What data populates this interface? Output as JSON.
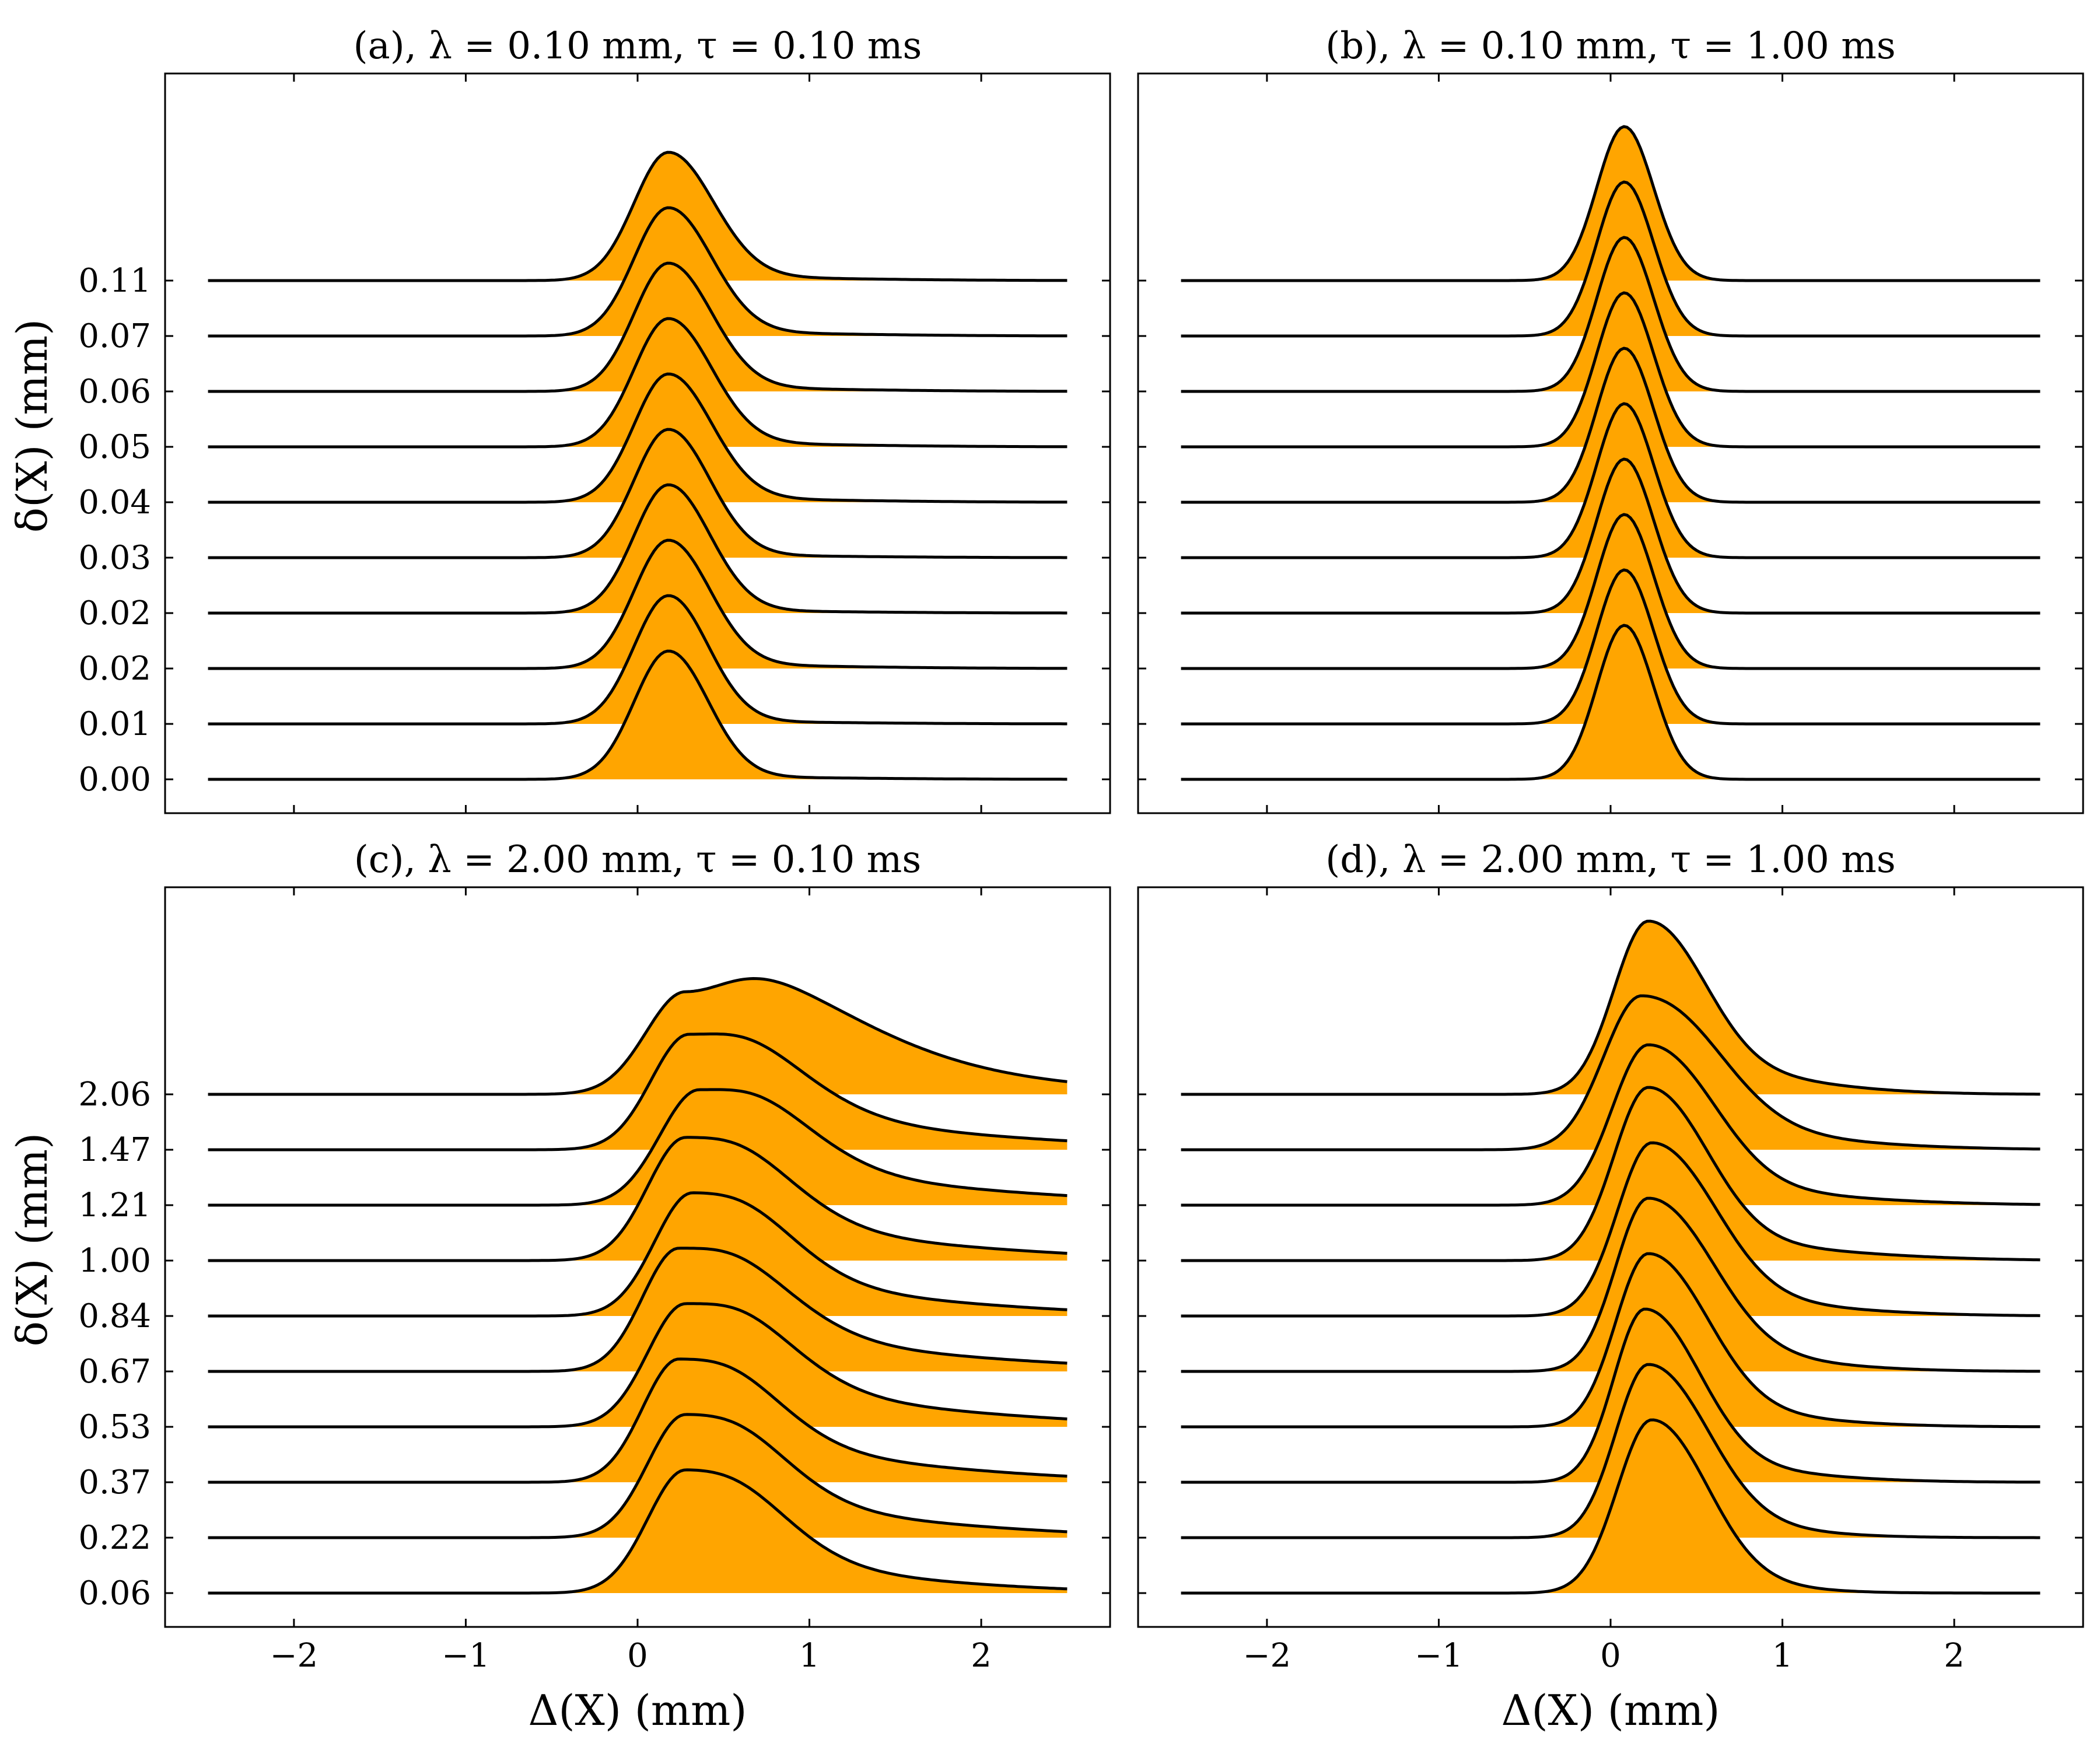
{
  "chart_data": [
    {
      "type": "ridgeline",
      "panel": "a",
      "title": "(a), λ = 0.10 mm, τ = 0.10 ms",
      "xlabel": "",
      "ylabel": "δ(X) (mm)",
      "xlim": [
        -2.75,
        2.75
      ],
      "x_ticks": [
        -2,
        -1,
        0,
        1,
        2
      ],
      "x_tick_labels": [],
      "y_tick_labels": [
        "0.00",
        "0.01",
        "0.02",
        "0.02",
        "0.03",
        "0.04",
        "0.05",
        "0.06",
        "0.07",
        "0.11"
      ],
      "fill_color": "#FFA500",
      "line_color": "#000000",
      "grid": false,
      "series": [
        {
          "label": "0.00",
          "peak_x": 0.18,
          "sigma_left": 0.2,
          "sigma_right": 0.23,
          "height": 1.0,
          "tail_amp": 0.02,
          "tail_decay": 0.5
        },
        {
          "label": "0.01",
          "peak_x": 0.18,
          "sigma_left": 0.2,
          "sigma_right": 0.23,
          "height": 1.0,
          "tail_amp": 0.02,
          "tail_decay": 0.5
        },
        {
          "label": "0.02",
          "peak_x": 0.18,
          "sigma_left": 0.2,
          "sigma_right": 0.24,
          "height": 1.0,
          "tail_amp": 0.03,
          "tail_decay": 0.5
        },
        {
          "label": "0.02",
          "peak_x": 0.18,
          "sigma_left": 0.2,
          "sigma_right": 0.24,
          "height": 1.0,
          "tail_amp": 0.02,
          "tail_decay": 0.5
        },
        {
          "label": "0.03",
          "peak_x": 0.18,
          "sigma_left": 0.2,
          "sigma_right": 0.24,
          "height": 1.0,
          "tail_amp": 0.02,
          "tail_decay": 0.5
        },
        {
          "label": "0.04",
          "peak_x": 0.18,
          "sigma_left": 0.2,
          "sigma_right": 0.25,
          "height": 1.0,
          "tail_amp": 0.03,
          "tail_decay": 0.5
        },
        {
          "label": "0.05",
          "peak_x": 0.18,
          "sigma_left": 0.2,
          "sigma_right": 0.25,
          "height": 1.0,
          "tail_amp": 0.03,
          "tail_decay": 0.5
        },
        {
          "label": "0.06",
          "peak_x": 0.18,
          "sigma_left": 0.2,
          "sigma_right": 0.25,
          "height": 1.0,
          "tail_amp": 0.03,
          "tail_decay": 0.5
        },
        {
          "label": "0.07",
          "peak_x": 0.18,
          "sigma_left": 0.2,
          "sigma_right": 0.25,
          "height": 1.0,
          "tail_amp": 0.03,
          "tail_decay": 0.5
        },
        {
          "label": "0.11",
          "peak_x": 0.18,
          "sigma_left": 0.2,
          "sigma_right": 0.26,
          "height": 1.0,
          "tail_amp": 0.03,
          "tail_decay": 0.5
        }
      ]
    },
    {
      "type": "ridgeline",
      "panel": "b",
      "title": "(b), λ = 0.10 mm, τ = 1.00 ms",
      "xlabel": "",
      "ylabel": "",
      "xlim": [
        -2.75,
        2.75
      ],
      "x_ticks": [
        -2,
        -1,
        0,
        1,
        2
      ],
      "x_tick_labels": [],
      "y_tick_labels": [],
      "fill_color": "#FFA500",
      "line_color": "#000000",
      "grid": false,
      "series": [
        {
          "label": "",
          "peak_x": 0.08,
          "sigma_left": 0.16,
          "sigma_right": 0.17,
          "height": 1.2,
          "tail_amp": 0.0,
          "tail_decay": 0.5
        },
        {
          "label": "",
          "peak_x": 0.08,
          "sigma_left": 0.16,
          "sigma_right": 0.17,
          "height": 1.2,
          "tail_amp": 0.0,
          "tail_decay": 0.5
        },
        {
          "label": "",
          "peak_x": 0.08,
          "sigma_left": 0.16,
          "sigma_right": 0.17,
          "height": 1.2,
          "tail_amp": 0.0,
          "tail_decay": 0.5
        },
        {
          "label": "",
          "peak_x": 0.08,
          "sigma_left": 0.16,
          "sigma_right": 0.17,
          "height": 1.2,
          "tail_amp": 0.0,
          "tail_decay": 0.5
        },
        {
          "label": "",
          "peak_x": 0.08,
          "sigma_left": 0.16,
          "sigma_right": 0.17,
          "height": 1.2,
          "tail_amp": 0.0,
          "tail_decay": 0.5
        },
        {
          "label": "",
          "peak_x": 0.08,
          "sigma_left": 0.16,
          "sigma_right": 0.17,
          "height": 1.2,
          "tail_amp": 0.0,
          "tail_decay": 0.5
        },
        {
          "label": "",
          "peak_x": 0.08,
          "sigma_left": 0.16,
          "sigma_right": 0.17,
          "height": 1.2,
          "tail_amp": 0.0,
          "tail_decay": 0.5
        },
        {
          "label": "",
          "peak_x": 0.08,
          "sigma_left": 0.16,
          "sigma_right": 0.17,
          "height": 1.2,
          "tail_amp": 0.0,
          "tail_decay": 0.5
        },
        {
          "label": "",
          "peak_x": 0.08,
          "sigma_left": 0.16,
          "sigma_right": 0.17,
          "height": 1.2,
          "tail_amp": 0.0,
          "tail_decay": 0.5
        },
        {
          "label": "",
          "peak_x": 0.08,
          "sigma_left": 0.16,
          "sigma_right": 0.17,
          "height": 1.2,
          "tail_amp": 0.0,
          "tail_decay": 0.5
        }
      ]
    },
    {
      "type": "ridgeline",
      "panel": "c",
      "title": "(c), λ = 2.00 mm, τ = 0.10 ms",
      "xlabel": "Δ(X) (mm)",
      "ylabel": "δ(X) (mm)",
      "xlim": [
        -2.75,
        2.75
      ],
      "x_ticks": [
        -2,
        -1,
        0,
        1,
        2
      ],
      "x_tick_labels": [
        "−2",
        "−1",
        "0",
        "1",
        "2"
      ],
      "y_tick_labels": [
        "0.06",
        "0.22",
        "0.37",
        "0.53",
        "0.67",
        "0.84",
        "1.00",
        "1.21",
        "1.47",
        "2.06"
      ],
      "fill_color": "#FFA500",
      "line_color": "#000000",
      "grid": false,
      "series": [
        {
          "label": "0.06",
          "peak_x": 0.28,
          "sigma_left": 0.22,
          "sigma_right": 0.45,
          "height": 0.96,
          "tail_amp": 0.22,
          "tail_decay": 0.65
        },
        {
          "label": "0.22",
          "peak_x": 0.28,
          "sigma_left": 0.22,
          "sigma_right": 0.45,
          "height": 0.96,
          "tail_amp": 0.24,
          "tail_decay": 0.7
        },
        {
          "label": "0.37",
          "peak_x": 0.24,
          "sigma_left": 0.21,
          "sigma_right": 0.45,
          "height": 0.96,
          "tail_amp": 0.26,
          "tail_decay": 0.7
        },
        {
          "label": "0.53",
          "peak_x": 0.28,
          "sigma_left": 0.22,
          "sigma_right": 0.48,
          "height": 0.96,
          "tail_amp": 0.26,
          "tail_decay": 0.75
        },
        {
          "label": "0.67",
          "peak_x": 0.24,
          "sigma_left": 0.21,
          "sigma_right": 0.5,
          "height": 0.96,
          "tail_amp": 0.24,
          "tail_decay": 0.8
        },
        {
          "label": "0.84",
          "peak_x": 0.32,
          "sigma_left": 0.22,
          "sigma_right": 0.45,
          "height": 0.96,
          "tail_amp": 0.24,
          "tail_decay": 0.7
        },
        {
          "label": "1.00",
          "peak_x": 0.28,
          "sigma_left": 0.22,
          "sigma_right": 0.48,
          "height": 0.96,
          "tail_amp": 0.24,
          "tail_decay": 0.75
        },
        {
          "label": "1.21",
          "peak_x": 0.36,
          "sigma_left": 0.23,
          "sigma_right": 0.5,
          "height": 0.9,
          "tail_amp": 0.26,
          "tail_decay": 0.8
        },
        {
          "label": "1.47",
          "peak_x": 0.3,
          "sigma_left": 0.22,
          "sigma_right": 0.52,
          "height": 0.9,
          "tail_amp": 0.26,
          "tail_decay": 0.8
        },
        {
          "label": "2.06",
          "peak_x": 0.28,
          "sigma_left": 0.23,
          "sigma_right": 0.8,
          "height": 0.8,
          "tail_amp": 0.35,
          "tail_decay": 0.8
        }
      ]
    },
    {
      "type": "ridgeline",
      "panel": "d",
      "title": "(d), λ = 2.00 mm, τ = 1.00 ms",
      "xlabel": "Δ(X) (mm)",
      "ylabel": "",
      "xlim": [
        -2.75,
        2.75
      ],
      "x_ticks": [
        -2,
        -1,
        0,
        1,
        2
      ],
      "x_tick_labels": [
        "−2",
        "−1",
        "0",
        "1",
        "2"
      ],
      "y_tick_labels": [],
      "fill_color": "#FFA500",
      "line_color": "#000000",
      "grid": false,
      "series": [
        {
          "label": "",
          "peak_x": 0.24,
          "sigma_left": 0.2,
          "sigma_right": 0.3,
          "height": 1.35,
          "tail_amp": 0.12,
          "tail_decay": 0.3
        },
        {
          "label": "",
          "peak_x": 0.22,
          "sigma_left": 0.19,
          "sigma_right": 0.32,
          "height": 1.35,
          "tail_amp": 0.12,
          "tail_decay": 0.35
        },
        {
          "label": "",
          "peak_x": 0.2,
          "sigma_left": 0.18,
          "sigma_right": 0.3,
          "height": 1.35,
          "tail_amp": 0.12,
          "tail_decay": 0.4
        },
        {
          "label": "",
          "peak_x": 0.22,
          "sigma_left": 0.19,
          "sigma_right": 0.32,
          "height": 1.35,
          "tail_amp": 0.12,
          "tail_decay": 0.4
        },
        {
          "label": "",
          "peak_x": 0.22,
          "sigma_left": 0.19,
          "sigma_right": 0.34,
          "height": 1.35,
          "tail_amp": 0.14,
          "tail_decay": 0.4
        },
        {
          "label": "",
          "peak_x": 0.24,
          "sigma_left": 0.2,
          "sigma_right": 0.34,
          "height": 1.35,
          "tail_amp": 0.12,
          "tail_decay": 0.45
        },
        {
          "label": "",
          "peak_x": 0.22,
          "sigma_left": 0.2,
          "sigma_right": 0.32,
          "height": 1.35,
          "tail_amp": 0.12,
          "tail_decay": 0.5
        },
        {
          "label": "",
          "peak_x": 0.22,
          "sigma_left": 0.21,
          "sigma_right": 0.35,
          "height": 1.25,
          "tail_amp": 0.12,
          "tail_decay": 0.5
        },
        {
          "label": "",
          "peak_x": 0.18,
          "sigma_left": 0.22,
          "sigma_right": 0.4,
          "height": 1.2,
          "tail_amp": 0.14,
          "tail_decay": 0.5
        },
        {
          "label": "",
          "peak_x": 0.22,
          "sigma_left": 0.2,
          "sigma_right": 0.3,
          "height": 1.35,
          "tail_amp": 0.18,
          "tail_decay": 0.4
        }
      ]
    }
  ]
}
